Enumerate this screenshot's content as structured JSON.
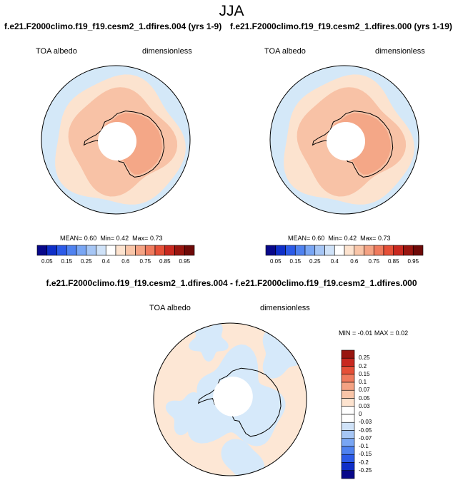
{
  "title": "JJA",
  "panels": [
    {
      "case_title": "f.e21.F2000climo.f19_f19.cesm2_1.dfires.004 (yrs 1-9)",
      "left_label": "TOA albedo",
      "right_label": "dimensionless",
      "stats": {
        "mean_label": "MEAN=",
        "mean": "0.60",
        "min_label": "Min=",
        "min": "0.42",
        "max_label": "Max=",
        "max": "0.73"
      }
    },
    {
      "case_title": "f.e21.F2000climo.f19_f19.cesm2_1.dfires.000 (yrs 1-19)",
      "left_label": "TOA albedo",
      "right_label": "dimensionless",
      "stats": {
        "mean_label": "MEAN=",
        "mean": "0.60",
        "min_label": "Min=",
        "min": "0.42",
        "max_label": "Max=",
        "max": "0.73"
      }
    }
  ],
  "diff": {
    "title": "f.e21.F2000climo.f19_f19.cesm2_1.dfires.004 - f.e21.F2000climo.f19_f19.cesm2_1.dfires.000",
    "left_label": "TOA albedo",
    "right_label": "dimensionless",
    "stats": {
      "min_label": "MIN =",
      "min": "-0.01",
      "max_label": "MAX =",
      "max": "0.02"
    }
  },
  "chart_data": [
    {
      "type": "heatmap",
      "projection": "south-polar-stereographic",
      "title": "f.e21.F2000climo.f19_f19.cesm2_1.dfires.004 (yrs 1-9)",
      "field": "TOA albedo",
      "units": "dimensionless",
      "mean": 0.6,
      "min": 0.42,
      "max": 0.73,
      "colorbar_orientation": "horizontal",
      "colorbar_ticks": [
        "0.05",
        "0.15",
        "0.25",
        "0.4",
        "0.6",
        "0.75",
        "0.85",
        "0.95"
      ],
      "colorbar_colors": [
        "#08088a",
        "#0f2fc8",
        "#2c5be8",
        "#4f82f0",
        "#79a6f4",
        "#a6c6f5",
        "#cfe2f8",
        "#ffffff",
        "#fde3cf",
        "#f9c5a8",
        "#f4a283",
        "#ef7a5d",
        "#e54f37",
        "#c8281f",
        "#98150f",
        "#6e0a08"
      ],
      "regions": [
        {
          "name": "outer-ocean",
          "approx_value": 0.47
        },
        {
          "name": "sea-ice-outer",
          "approx_value": 0.6
        },
        {
          "name": "sea-ice-inner",
          "approx_value": 0.65
        },
        {
          "name": "antarctic-continent",
          "approx_value": 0.7
        },
        {
          "name": "polar-night",
          "approx_value": null
        }
      ]
    },
    {
      "type": "heatmap",
      "projection": "south-polar-stereographic",
      "title": "f.e21.F2000climo.f19_f19.cesm2_1.dfires.000 (yrs 1-19)",
      "field": "TOA albedo",
      "units": "dimensionless",
      "mean": 0.6,
      "min": 0.42,
      "max": 0.73,
      "colorbar_orientation": "horizontal",
      "colorbar_ticks": [
        "0.05",
        "0.15",
        "0.25",
        "0.4",
        "0.6",
        "0.75",
        "0.85",
        "0.95"
      ],
      "colorbar_colors": [
        "#08088a",
        "#0f2fc8",
        "#2c5be8",
        "#4f82f0",
        "#79a6f4",
        "#a6c6f5",
        "#cfe2f8",
        "#ffffff",
        "#fde3cf",
        "#f9c5a8",
        "#f4a283",
        "#ef7a5d",
        "#e54f37",
        "#c8281f",
        "#98150f",
        "#6e0a08"
      ],
      "regions": [
        {
          "name": "outer-ocean",
          "approx_value": 0.47
        },
        {
          "name": "sea-ice-outer",
          "approx_value": 0.6
        },
        {
          "name": "sea-ice-inner",
          "approx_value": 0.65
        },
        {
          "name": "antarctic-continent",
          "approx_value": 0.7
        },
        {
          "name": "polar-night",
          "approx_value": null
        }
      ]
    },
    {
      "type": "heatmap",
      "projection": "south-polar-stereographic",
      "title": "f.e21.F2000climo.f19_f19.cesm2_1.dfires.004 - f.e21.F2000climo.f19_f19.cesm2_1.dfires.000",
      "field": "TOA albedo",
      "units": "dimensionless",
      "min": -0.01,
      "max": 0.02,
      "colorbar_orientation": "vertical",
      "colorbar_ticks": [
        "0.25",
        "0.2",
        "0.15",
        "0.1",
        "0.07",
        "0.05",
        "0.03",
        "0",
        "-0.03",
        "-0.05",
        "-0.07",
        "-0.1",
        "-0.15",
        "-0.2",
        "-0.25"
      ],
      "colorbar_colors": [
        "#98150f",
        "#c8281f",
        "#e54f37",
        "#ef7a5d",
        "#f4a283",
        "#f9c5a8",
        "#fde3cf",
        "#ffffff",
        "#ffffff",
        "#cfe2f8",
        "#a6c6f5",
        "#79a6f4",
        "#4f82f0",
        "#2c5be8",
        "#0f2fc8",
        "#08088a"
      ],
      "regions": [
        {
          "name": "negative-small",
          "approx_value": -0.01
        },
        {
          "name": "positive-small",
          "approx_value": 0.01
        },
        {
          "name": "polar-night",
          "approx_value": null
        }
      ]
    }
  ]
}
